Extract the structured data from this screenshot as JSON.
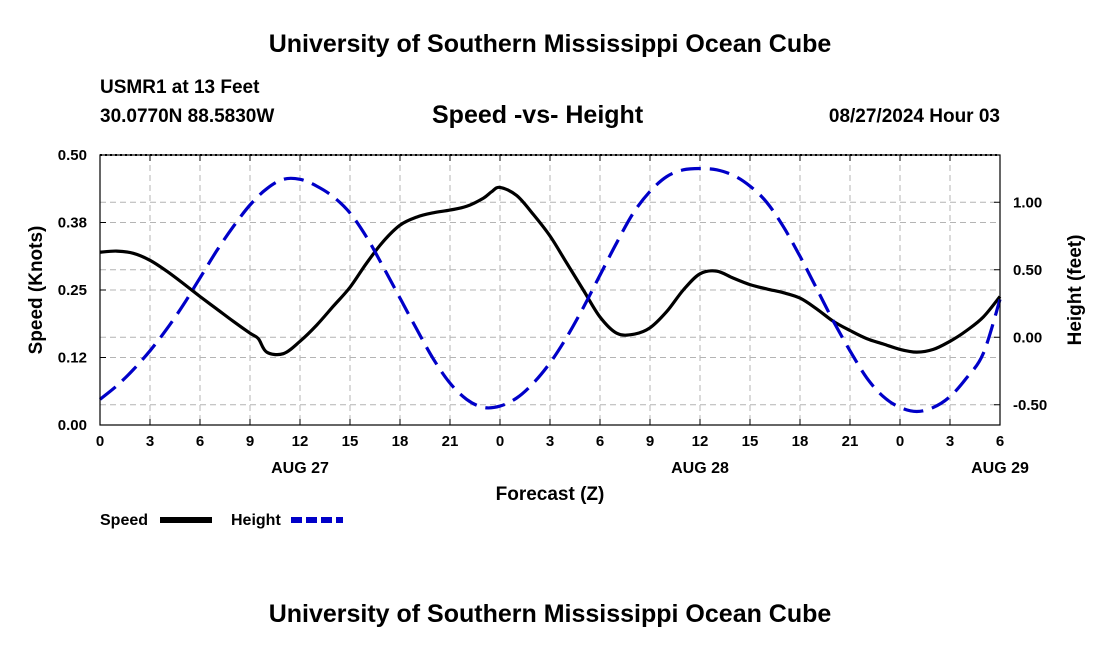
{
  "header": {
    "title": "University of Southern Mississippi Ocean Cube",
    "station": "USMR1 at 13 Feet",
    "coords": "30.0770N  88.5830W",
    "subtitle": "Speed -vs- Height",
    "datetime": "08/27/2024 Hour 03"
  },
  "footer": {
    "title": "University of Southern Mississippi Ocean Cube"
  },
  "chart_data": {
    "type": "line",
    "title": "Speed -vs- Height",
    "xlabel": "Forecast (Z)",
    "x_units": "hours since 08/27/2024 00Z",
    "xlim": [
      0,
      54
    ],
    "x_ticks": [
      0,
      3,
      6,
      9,
      12,
      15,
      18,
      21,
      24,
      27,
      30,
      33,
      36,
      39,
      42,
      45,
      48,
      51,
      54
    ],
    "x_tick_labels": [
      "0",
      "3",
      "6",
      "9",
      "12",
      "15",
      "18",
      "21",
      "0",
      "3",
      "6",
      "9",
      "12",
      "15",
      "18",
      "21",
      "0",
      "3",
      "6"
    ],
    "date_labels": [
      {
        "label": "AUG 27",
        "x": 12
      },
      {
        "label": "AUG 28",
        "x": 36
      },
      {
        "label": "AUG 29",
        "x": 54
      }
    ],
    "left_axis": {
      "label": "Speed (Knots)",
      "lim": [
        0,
        0.5
      ],
      "ticks": [
        0,
        0.125,
        0.25,
        0.375,
        0.5
      ],
      "tick_labels": [
        "0.00",
        "0.12",
        "0.25",
        "0.38",
        "0.50"
      ]
    },
    "right_axis": {
      "label": "Height (feet)",
      "lim": [
        -0.65,
        1.35
      ],
      "ticks": [
        -0.5,
        0,
        0.5,
        1.0
      ],
      "tick_labels": [
        "-0.50",
        "0.00",
        "0.50",
        "1.00"
      ]
    },
    "grid": true,
    "series": [
      {
        "name": "Speed",
        "axis": "left",
        "color": "#000000",
        "style": "solid",
        "x": [
          0,
          1,
          2,
          3,
          4,
          5,
          6,
          7,
          8,
          9,
          9.5,
          10,
          11,
          12,
          13,
          14,
          15,
          16,
          17,
          18,
          19,
          20,
          21,
          22,
          23,
          23.5,
          24,
          25,
          26,
          27,
          28,
          29,
          30,
          31,
          32,
          33,
          34,
          35,
          36,
          37,
          38,
          39,
          40,
          41,
          42,
          43,
          44,
          45,
          46,
          47,
          48,
          49,
          50,
          51,
          52,
          53,
          54
        ],
        "y": [
          0.32,
          0.322,
          0.318,
          0.305,
          0.285,
          0.262,
          0.238,
          0.215,
          0.192,
          0.17,
          0.16,
          0.135,
          0.132,
          0.155,
          0.185,
          0.22,
          0.255,
          0.3,
          0.34,
          0.37,
          0.385,
          0.393,
          0.398,
          0.405,
          0.42,
          0.432,
          0.44,
          0.425,
          0.39,
          0.35,
          0.3,
          0.25,
          0.2,
          0.17,
          0.168,
          0.18,
          0.21,
          0.25,
          0.28,
          0.285,
          0.272,
          0.26,
          0.252,
          0.245,
          0.235,
          0.215,
          0.192,
          0.175,
          0.16,
          0.15,
          0.14,
          0.135,
          0.14,
          0.155,
          0.175,
          0.2,
          0.238
        ]
      },
      {
        "name": "Height",
        "axis": "right",
        "color": "#0000c8",
        "style": "dashed",
        "x": [
          0,
          1,
          2,
          3,
          4,
          5,
          6,
          7,
          8,
          9,
          10,
          11,
          12,
          13,
          14,
          15,
          16,
          17,
          18,
          19,
          20,
          21,
          22,
          23,
          24,
          25,
          26,
          27,
          28,
          29,
          30,
          31,
          32,
          33,
          34,
          35,
          36,
          37,
          38,
          39,
          40,
          41,
          42,
          43,
          44,
          45,
          46,
          47,
          48,
          49,
          50,
          51,
          52,
          53,
          54
        ],
        "y": [
          -0.46,
          -0.36,
          -0.24,
          -0.1,
          0.06,
          0.24,
          0.44,
          0.64,
          0.82,
          0.98,
          1.1,
          1.17,
          1.17,
          1.12,
          1.04,
          0.92,
          0.74,
          0.52,
          0.29,
          0.06,
          -0.16,
          -0.34,
          -0.46,
          -0.52,
          -0.51,
          -0.45,
          -0.34,
          -0.19,
          0.0,
          0.22,
          0.46,
          0.7,
          0.92,
          1.08,
          1.19,
          1.24,
          1.25,
          1.24,
          1.2,
          1.12,
          1.0,
          0.82,
          0.6,
          0.36,
          0.12,
          -0.1,
          -0.3,
          -0.44,
          -0.52,
          -0.55,
          -0.52,
          -0.44,
          -0.3,
          -0.12,
          0.28
        ]
      }
    ],
    "legend": {
      "placement": "bottom-left",
      "entries": [
        {
          "label": "Speed",
          "color": "#000000",
          "style": "solid"
        },
        {
          "label": "Height",
          "color": "#0000c8",
          "style": "dashed"
        }
      ]
    }
  }
}
